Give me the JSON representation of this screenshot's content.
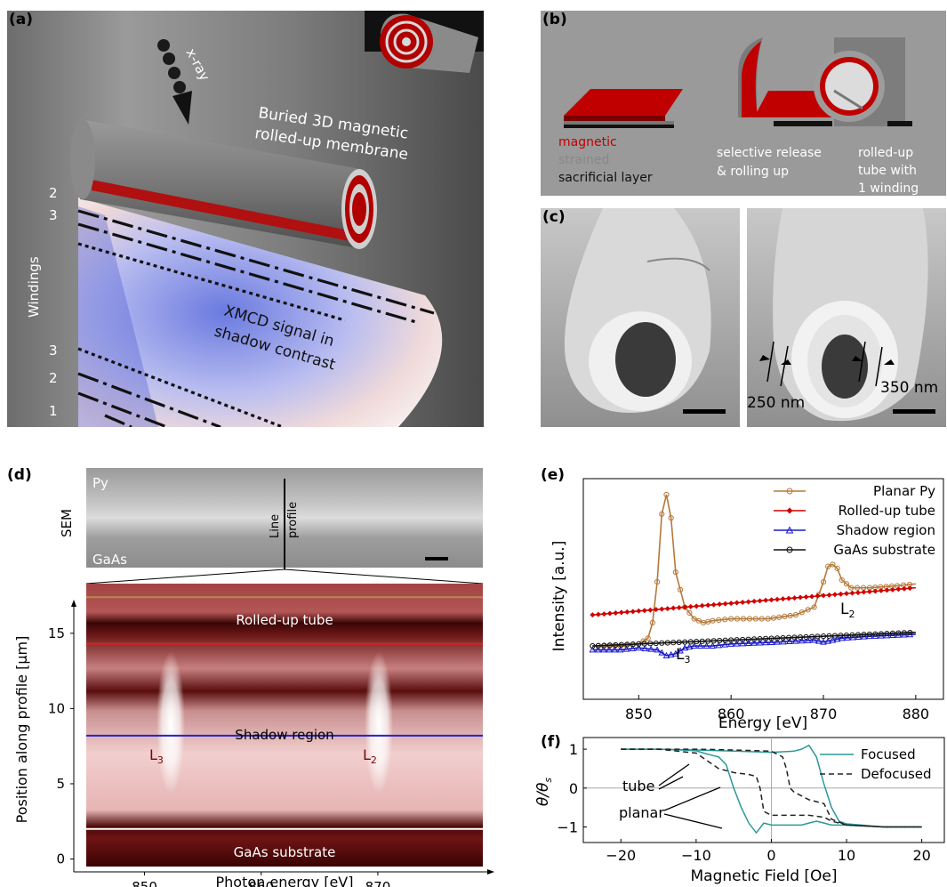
{
  "panels": {
    "a": {
      "label": "(a)",
      "xray": "x-ray",
      "membrane": [
        "Buried 3D magnetic",
        "rolled-up membrane"
      ],
      "windings_label": "Windings",
      "winding_numbers_top": [
        "2",
        "3"
      ],
      "winding_numbers_bottom": [
        "3",
        "2",
        "1"
      ],
      "xmcd": [
        "XMCD signal in",
        "shadow contrast"
      ]
    },
    "b": {
      "label": "(b)",
      "legend": [
        "magnetic",
        "strained",
        "sacrificial layer"
      ],
      "step2": [
        "selective release",
        "& rolling up"
      ],
      "step3": [
        "rolled-up",
        "tube with",
        "1 winding"
      ],
      "colors": {
        "magnetic": "#c00000",
        "strained": "#8a8a8a",
        "sacrificial": "#111111"
      }
    },
    "c": {
      "label": "(c)",
      "dim1": "250 nm",
      "dim2": "350 nm"
    },
    "d": {
      "label": "(d)",
      "sem_label": "SEM",
      "py": "Py",
      "gaas": "GaAs",
      "line_profile": [
        "Line",
        "profile"
      ],
      "band_labels": {
        "tube": "Rolled-up tube",
        "shadow": "Shadow region",
        "substrate": "GaAs substrate"
      },
      "edges": {
        "l3": "L",
        "l3_sub": "3",
        "l2": "L",
        "l2_sub": "2"
      },
      "ylabel": "Position along profile [μm]",
      "xlabel": "Photon energy [eV]",
      "xticks": [
        "850",
        "860",
        "870"
      ],
      "yticks": [
        "0",
        "5",
        "10",
        "15"
      ],
      "line_colors": {
        "top": "#b48a4a",
        "tube": "#e02020",
        "shadow": "#2222cc",
        "substrate": "#ffffff"
      }
    },
    "e": {
      "label": "(e)",
      "ylabel": "Intensity [a.u.]",
      "xlabel": "Energy [eV]",
      "xticks": [
        "850",
        "860",
        "870",
        "880"
      ],
      "l3": "L",
      "l3_sub": "3",
      "l2": "L",
      "l2_sub": "2"
    },
    "f": {
      "label": "(f)",
      "ylabel": "θ/θ",
      "ylabel_sub": "s",
      "xlabel": "Magnetic Field [Oe]",
      "xticks": [
        "−20",
        "−10",
        "0",
        "10",
        "20"
      ],
      "yticks": [
        "1",
        "0",
        "−1"
      ],
      "ann_tube": "tube",
      "ann_planar": "planar"
    }
  },
  "chart_data": [
    {
      "type": "line",
      "panel": "e",
      "xlabel": "Energy [eV]",
      "ylabel": "Intensity [a.u.]",
      "xlim": [
        844,
        883
      ],
      "ylim": [
        0,
        1
      ],
      "legend_position": "top-right",
      "series": [
        {
          "name": "Planar Py",
          "color": "#b5793a",
          "marker": "o",
          "x": [
            845,
            848,
            850,
            851,
            851.5,
            852,
            852.5,
            853,
            853.5,
            854,
            855,
            856,
            857,
            858,
            860,
            864,
            867,
            869,
            870,
            870.5,
            871,
            871.5,
            872,
            873,
            875,
            878,
            880
          ],
          "y": [
            0.22,
            0.22,
            0.23,
            0.26,
            0.34,
            0.55,
            0.9,
            1.0,
            0.88,
            0.6,
            0.42,
            0.36,
            0.34,
            0.35,
            0.36,
            0.36,
            0.38,
            0.42,
            0.55,
            0.63,
            0.64,
            0.62,
            0.56,
            0.52,
            0.52,
            0.53,
            0.54
          ]
        },
        {
          "name": "Rolled-up tube",
          "color": "#d10000",
          "marker": "D",
          "x": [
            845,
            850,
            855,
            860,
            865,
            870,
            875,
            880
          ],
          "y": [
            0.38,
            0.4,
            0.42,
            0.44,
            0.46,
            0.48,
            0.5,
            0.52
          ]
        },
        {
          "name": "Shadow region",
          "color": "#1a1acc",
          "marker": "^",
          "x": [
            845,
            848,
            850,
            852,
            853,
            854,
            855,
            856,
            858,
            860,
            865,
            869,
            870,
            871,
            872,
            875,
            880
          ],
          "y": [
            0.2,
            0.2,
            0.21,
            0.2,
            0.17,
            0.18,
            0.21,
            0.22,
            0.22,
            0.23,
            0.24,
            0.25,
            0.24,
            0.25,
            0.26,
            0.27,
            0.28
          ]
        },
        {
          "name": "GaAs substrate",
          "color": "#111111",
          "marker": "o",
          "x": [
            845,
            850,
            855,
            860,
            865,
            870,
            875,
            880
          ],
          "y": [
            0.22,
            0.23,
            0.24,
            0.25,
            0.26,
            0.27,
            0.28,
            0.29
          ]
        }
      ]
    },
    {
      "type": "line",
      "panel": "f",
      "xlabel": "Magnetic Field [Oe]",
      "ylabel": "θ/θs",
      "xlim": [
        -25,
        23
      ],
      "ylim": [
        -1.4,
        1.3
      ],
      "legend_position": "top-right",
      "series": [
        {
          "name": "Focused",
          "color": "#2a9a98",
          "dash": "solid",
          "x": [
            -20,
            -15,
            -12,
            -10,
            -9,
            -8,
            -7,
            -6,
            -5,
            -4,
            -3,
            -2,
            -1,
            0,
            2,
            4,
            5,
            6,
            7,
            8,
            10,
            15,
            20
          ],
          "y": [
            1.0,
            1.0,
            0.98,
            0.96,
            0.9,
            0.85,
            0.8,
            0.6,
            0.0,
            -0.5,
            -0.9,
            -1.15,
            -0.9,
            -0.95,
            -0.95,
            -0.95,
            -0.9,
            -0.85,
            -0.9,
            -0.95,
            -0.95,
            -1.0,
            -1.0
          ]
        },
        {
          "name": "Focused",
          "color": "#2a9a98",
          "dash": "solid",
          "x": [
            -20,
            -15,
            -10,
            -5,
            0,
            3,
            4,
            5,
            6,
            7,
            8,
            9,
            10,
            15,
            20
          ],
          "y": [
            1.0,
            1.0,
            0.98,
            0.95,
            0.92,
            0.95,
            1.0,
            1.1,
            0.8,
            0.1,
            -0.5,
            -0.85,
            -0.92,
            -1.0,
            -1.0
          ]
        },
        {
          "name": "Defocused",
          "color": "#222222",
          "dash": "dashed",
          "x": [
            -20,
            -15,
            -10,
            -7,
            -5,
            -3,
            -2,
            -1.5,
            -1,
            0,
            5,
            7,
            8,
            10,
            15,
            20
          ],
          "y": [
            1.0,
            1.0,
            0.9,
            0.5,
            0.4,
            0.35,
            0.3,
            0.0,
            -0.6,
            -0.7,
            -0.7,
            -0.75,
            -0.85,
            -0.95,
            -1.0,
            -1.0
          ]
        },
        {
          "name": "Defocused",
          "color": "#222222",
          "dash": "dashed",
          "x": [
            -20,
            -10,
            -5,
            0,
            1.5,
            2,
            2.5,
            3,
            5,
            7,
            8,
            10,
            15,
            20
          ],
          "y": [
            1.0,
            1.0,
            0.98,
            0.95,
            0.8,
            0.5,
            0.0,
            -0.1,
            -0.3,
            -0.4,
            -0.8,
            -0.95,
            -1.0,
            -1.0
          ]
        }
      ]
    },
    {
      "type": "heatmap",
      "panel": "d",
      "xlabel": "Photon energy [eV]",
      "ylabel": "Position along profile [μm]",
      "xlim": [
        845,
        879
      ],
      "ylim": [
        -0.5,
        18.3
      ],
      "line_positions": [
        {
          "label": "top",
          "y": 17.4
        },
        {
          "label": "Rolled-up tube",
          "y": 14.3
        },
        {
          "label": "Shadow region",
          "y": 8.2
        },
        {
          "label": "GaAs substrate",
          "y": 2.0
        }
      ],
      "bright_edges_eV": [
        852.5,
        870.7
      ]
    }
  ]
}
